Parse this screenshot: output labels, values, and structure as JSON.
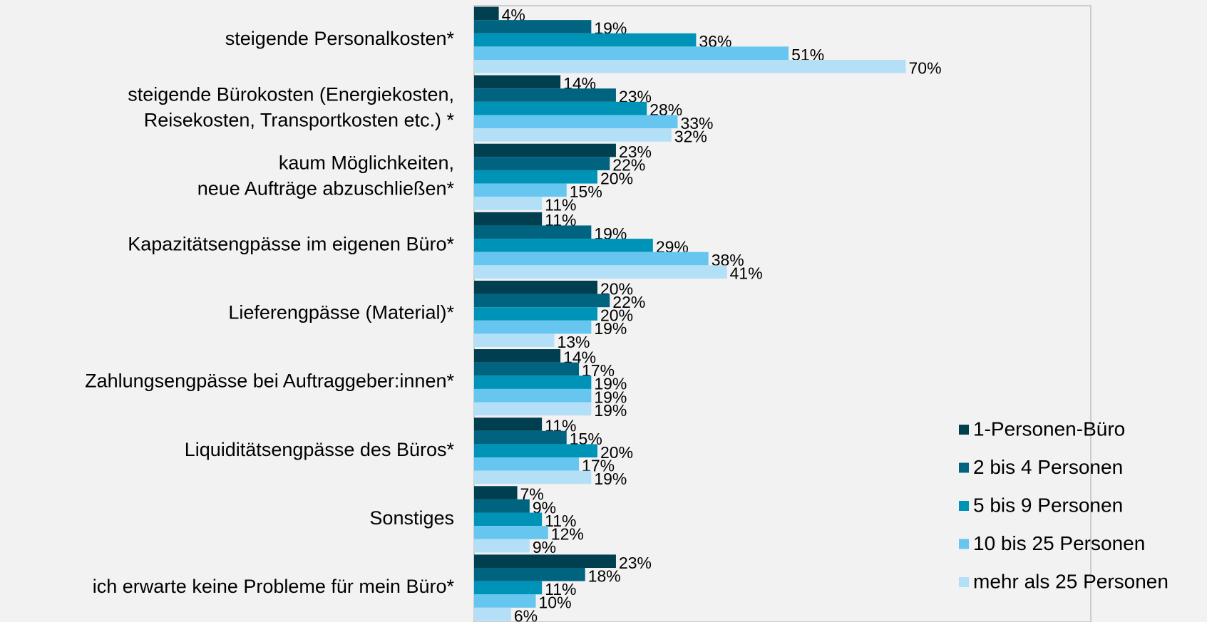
{
  "chart_data": {
    "type": "bar",
    "orientation": "horizontal",
    "categories": [
      [
        "steigende Personalkosten*"
      ],
      [
        "steigende Bürokosten (Energiekosten,",
        "Reisekosten, Transportkosten etc.) *"
      ],
      [
        "kaum Möglichkeiten,",
        "neue Aufträge abzuschließen*"
      ],
      [
        "Kapazitätsengpässe im eigenen Büro*"
      ],
      [
        "Lieferengpässe (Material)*"
      ],
      [
        "Zahlungsengpässe bei Auftraggeber:innen*"
      ],
      [
        "Liquiditätsengpässe des Büros*"
      ],
      [
        "Sonstiges"
      ],
      [
        "ich erwarte keine Probleme für mein Büro*"
      ]
    ],
    "series": [
      {
        "name": "1-Personen-Büro",
        "color": "#003f50",
        "values": [
          4,
          14,
          23,
          11,
          20,
          14,
          11,
          7,
          23
        ],
        "value_labels": [
          "4%",
          "14%",
          "23%",
          "11%",
          "20%",
          "14%",
          "11%",
          "7%",
          "23%"
        ]
      },
      {
        "name": "2 bis 4 Personen",
        "color": "#006480",
        "values": [
          19,
          23,
          22,
          19,
          22,
          17,
          15,
          9,
          18
        ],
        "value_labels": [
          "19%",
          "23%",
          "22%",
          "19%",
          "22%",
          "17%",
          "15%",
          "9%",
          "18%"
        ]
      },
      {
        "name": "5 bis 9 Personen",
        "color": "#0093b8",
        "values": [
          36,
          28,
          20,
          29,
          20,
          19,
          20,
          11,
          11
        ],
        "value_labels": [
          "36%",
          "28%",
          "20%",
          "29%",
          "20%",
          "19%",
          "20%",
          "11%",
          "11%"
        ]
      },
      {
        "name": "10 bis 25 Personen",
        "color": "#66c6ef",
        "values": [
          51,
          33,
          15,
          38,
          19,
          19,
          17,
          12,
          10
        ],
        "value_labels": [
          "51%",
          "33%",
          "15%",
          "38%",
          "19%",
          "19%",
          "17%",
          "12%",
          "10%"
        ]
      },
      {
        "name": "mehr als 25 Personen",
        "color": "#b3e0f7",
        "values": [
          70,
          32,
          11,
          41,
          13,
          19,
          19,
          9,
          6
        ],
        "value_labels": [
          "70%",
          "32%",
          "11%",
          "41%",
          "13%",
          "19%",
          "19%",
          "9%",
          "6%"
        ]
      }
    ],
    "xlim": [
      0,
      100
    ],
    "legend": "lower right"
  }
}
